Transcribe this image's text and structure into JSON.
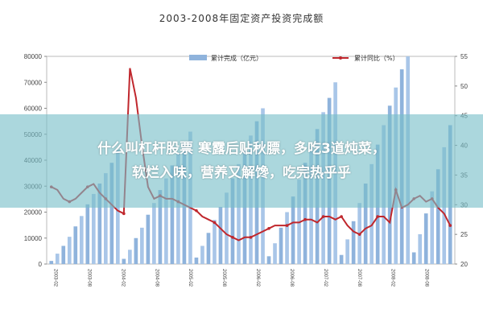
{
  "chart_data": {
    "type": "bar+line",
    "title": "2003-2008年固定资产投资完成额",
    "legend": [
      {
        "label": "累计完成（亿元）",
        "kind": "bar"
      },
      {
        "label": "累计同比（%）",
        "kind": "line"
      }
    ],
    "left_axis": {
      "min": 0,
      "max": 80000,
      "ticks": [
        "0",
        "10000",
        "20000",
        "30000",
        "40000",
        "50000",
        "60000",
        "70000",
        "80000"
      ]
    },
    "right_axis": {
      "min": 20,
      "max": 55,
      "ticks": [
        "20",
        "25",
        "30",
        "35",
        "40",
        "45",
        "50",
        "55"
      ]
    },
    "bar_values": [
      1200,
      4000,
      7000,
      10500,
      14500,
      18500,
      23000,
      27000,
      31000,
      35000,
      39000,
      44000,
      2000,
      5500,
      10000,
      14000,
      19000,
      23500,
      28500,
      33000,
      38000,
      42500,
      47000,
      51000,
      2500,
      7000,
      12000,
      17000,
      22000,
      27500,
      33000,
      38500,
      44000,
      49500,
      55000,
      60000,
      3000,
      8000,
      14000,
      20000,
      26000,
      32500,
      39000,
      45500,
      52000,
      58500,
      64000,
      70000,
      3500,
      9500,
      16500,
      23500,
      31000,
      38500,
      46000,
      53500,
      61000,
      68000,
      75000,
      80000,
      4500,
      11500,
      19500,
      28000,
      36500,
      45000,
      53500
    ],
    "line_values": [
      33,
      32.5,
      31,
      30.5,
      31,
      32,
      33,
      33.5,
      32,
      31,
      30,
      29,
      28.5,
      53,
      48,
      40,
      33,
      31,
      31.5,
      31,
      31,
      30.5,
      30,
      29.5,
      29,
      28,
      27.5,
      27,
      26,
      25,
      24.5,
      24,
      24.5,
      24.5,
      25,
      25.5,
      26,
      26.5,
      26.5,
      26.5,
      27,
      27,
      27.5,
      27.5,
      27,
      28,
      28,
      27.5,
      28,
      26.5,
      25.5,
      25,
      26,
      26.5,
      28,
      28,
      27,
      32.5,
      29.5,
      30,
      31,
      31.5,
      30.5,
      31,
      29.5,
      28.5,
      26.5
    ],
    "x_labels": [
      "2003-02",
      "2003-08",
      "2004-02",
      "2004-08",
      "2005-02",
      "2005-08",
      "2006-02",
      "2006-08",
      "2007-02",
      "2007-08",
      "2008-02",
      "2008-08"
    ],
    "bar_color": "#8fb3dc",
    "bar_color_alt": "#a9c6e8",
    "line_color": "#c0272d",
    "banner_color": "#78bec8"
  },
  "banner": {
    "line1": "什么叫杠杆股票 寒露后贴秋膘，多吃3道炖菜，",
    "line2": "软烂入味，营养又解馋，吃完热乎乎"
  }
}
